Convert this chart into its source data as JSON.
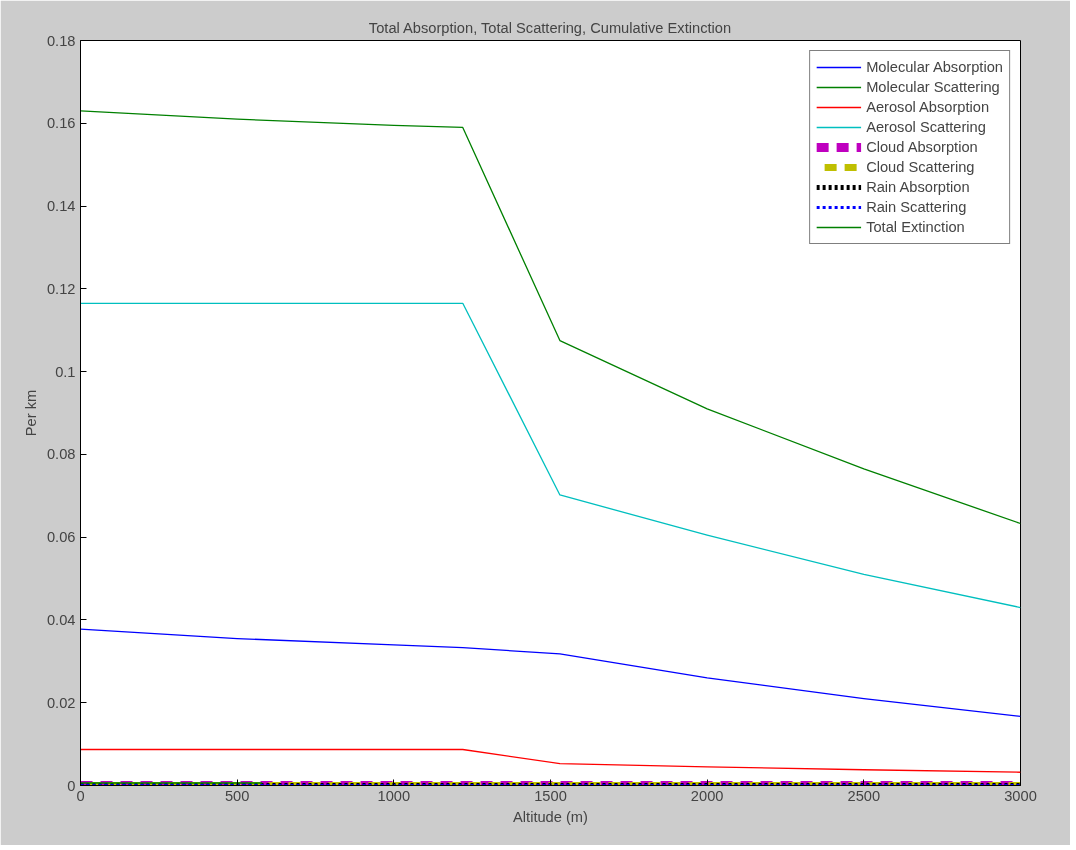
{
  "chart_data": {
    "type": "line",
    "title": "Total Absorption, Total Scattering, Cumulative Extinction",
    "xlabel": "Altitude (m)",
    "ylabel": "Per km",
    "xlim": [
      0,
      3000
    ],
    "xticks": [
      0,
      500,
      1000,
      1500,
      2000,
      2500,
      3000
    ],
    "ylim": [
      0,
      0.18
    ],
    "yticks": [
      0,
      0.02,
      0.04,
      0.06,
      0.08,
      0.1,
      0.12,
      0.14,
      0.16,
      0.18
    ],
    "grid": false,
    "legend": "top right",
    "line_style": "solid",
    "series": [
      {
        "name": "Molecular Absorption",
        "color": "#0000ff",
        "x": [
          0,
          500,
          1000,
          1220,
          1530,
          2000,
          2500,
          3000
        ],
        "values": [
          0.0378,
          0.0355,
          0.034,
          0.0333,
          0.0318,
          0.026,
          0.021,
          0.0167
        ]
      },
      {
        "name": "Molecular Scattering",
        "color": "#008000",
        "x": [
          0,
          580
        ],
        "values": [
          0.0006,
          0.0006
        ]
      },
      {
        "name": "Aerosol Absorption",
        "color": "#ff0000",
        "x": [
          0,
          1220,
          1530,
          2000,
          2500,
          3000
        ],
        "values": [
          0.0087,
          0.0087,
          0.0053,
          0.0045,
          0.0038,
          0.0032
        ]
      },
      {
        "name": "Aerosol Scattering",
        "color": "#00bfbf",
        "x": [
          0,
          1220,
          1530,
          2000,
          2500,
          3000
        ],
        "values": [
          0.1165,
          0.1165,
          0.0702,
          0.0605,
          0.051,
          0.043
        ]
      },
      {
        "name": "Cloud Absorption",
        "color": "#bf00bf",
        "line_style": "dashed",
        "x": [
          0,
          3000
        ],
        "values": [
          0,
          0
        ]
      },
      {
        "name": "Cloud Scattering",
        "color": "#bfbf00",
        "line_style": "dashed",
        "x": [
          0,
          3000
        ],
        "values": [
          0,
          0
        ]
      },
      {
        "name": "Rain Absorption",
        "color": "#000000",
        "line_style": "dotted",
        "x": [
          0,
          3000
        ],
        "values": [
          0,
          0
        ]
      },
      {
        "name": "Rain Scattering",
        "color": "#0000ff",
        "line_style": "dotted",
        "x": [
          0,
          3000
        ],
        "values": [
          0,
          0
        ]
      },
      {
        "name": "Total Extinction",
        "color": "#008000",
        "x": [
          0,
          500,
          1000,
          1220,
          1530,
          2000,
          2500,
          3000
        ],
        "values": [
          0.163,
          0.161,
          0.1595,
          0.159,
          0.1075,
          0.091,
          0.0765,
          0.0633
        ]
      }
    ]
  }
}
